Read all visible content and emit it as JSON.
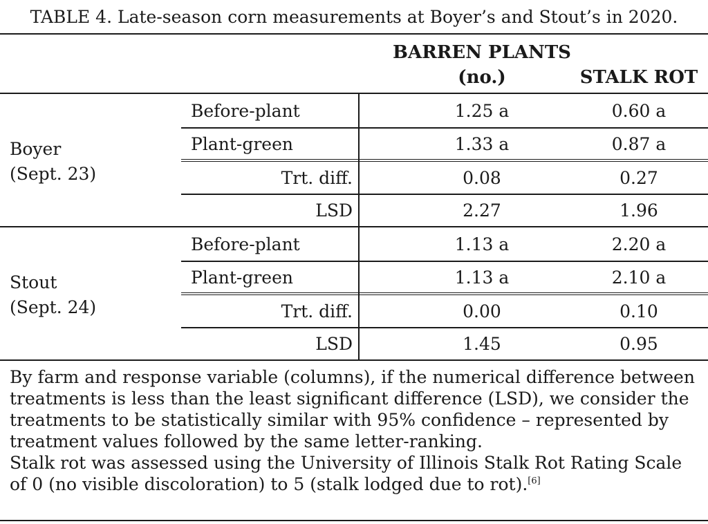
{
  "caption": "TABLE 4. Late-season corn measurements at Boyer’s and Stout’s in 2020.",
  "headers": {
    "barren_line1": "BARREN PLANTS",
    "barren_line2": "(no.)",
    "stalk_rot": "STALK ROT"
  },
  "farms": [
    {
      "name": "Boyer",
      "date": "(Sept. 23)",
      "rows": [
        {
          "label": "Before-plant",
          "barren": "1.25 a",
          "stalk": "0.60 a"
        },
        {
          "label": "Plant-green",
          "barren": "1.33 a",
          "stalk": "0.87 a"
        },
        {
          "label": "Trt. diff.",
          "barren": "0.08",
          "stalk": "0.27"
        },
        {
          "label": "LSD",
          "barren": "2.27",
          "stalk": "1.96"
        }
      ]
    },
    {
      "name": "Stout",
      "date": "(Sept. 24)",
      "rows": [
        {
          "label": "Before-plant",
          "barren": "1.13 a",
          "stalk": "2.20 a"
        },
        {
          "label": "Plant-green",
          "barren": "1.13 a",
          "stalk": "2.10 a"
        },
        {
          "label": "Trt. diff.",
          "barren": "0.00",
          "stalk": "0.10"
        },
        {
          "label": "LSD",
          "barren": "1.45",
          "stalk": "0.95"
        }
      ]
    }
  ],
  "footnote": {
    "para1": "By farm and response variable (columns), if the numerical difference between treatments is less than the least significant difference (LSD), we consider the treatments to be statistically similar with 95% confidence – represented by treatment values followed by the same letter-ranking.",
    "para2": "Stalk rot was assessed using the University of Illinois Stalk Rot Rating Scale of 0 (no visible discoloration) to 5 (stalk lodged due to rot).",
    "ref": "[6]"
  }
}
